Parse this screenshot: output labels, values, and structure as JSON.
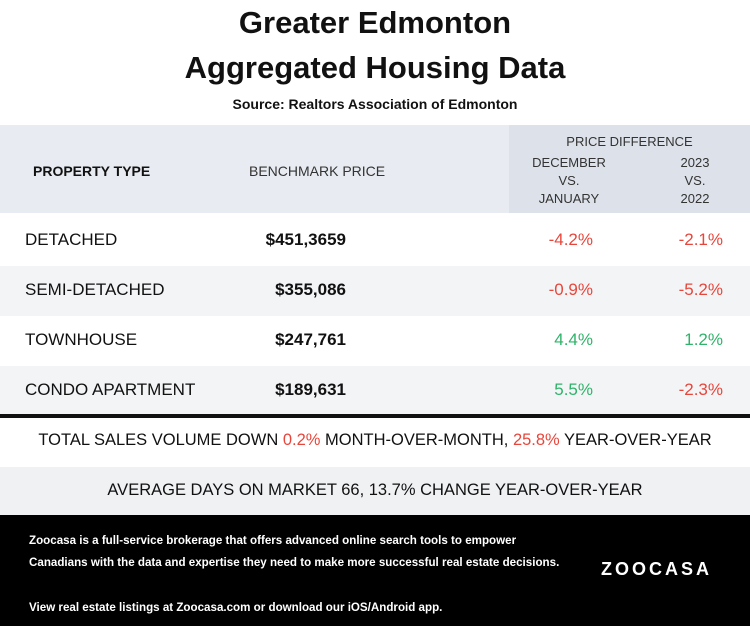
{
  "title_line1": "Greater Edmonton",
  "title_line2": "Aggregated Housing Data",
  "source": "Source: Realtors Association of Edmonton",
  "header": {
    "property_type": "PROPERTY TYPE",
    "benchmark_price": "BENCHMARK PRICE",
    "price_difference": "PRICE DIFFERENCE",
    "col_a_line1": "DECEMBER",
    "col_a_line2": "VS.",
    "col_a_line3": "JANUARY",
    "col_b_line1": "2023",
    "col_b_line2": "VS.",
    "col_b_line3": "2022"
  },
  "rows": [
    {
      "type": "DETACHED",
      "price": "$451,3659",
      "mom": "-4.2%",
      "yoy": "-2.1%"
    },
    {
      "type": "SEMI-DETACHED",
      "price": "$355,086",
      "mom": "-0.9%",
      "yoy": "-5.2%"
    },
    {
      "type": "TOWNHOUSE",
      "price": "$247,761",
      "mom": "4.4%",
      "yoy": "1.2%"
    },
    {
      "type": "CONDO APARTMENT",
      "price": "$189,631",
      "mom": "5.5%",
      "yoy": "-2.3%"
    }
  ],
  "sales": {
    "prefix": "TOTAL SALES VOLUME DOWN ",
    "mom_value": "0.2%",
    "middle": " MONTH-OVER-MONTH, ",
    "yoy_value": "25.8%",
    "suffix": " YEAR-OVER-YEAR"
  },
  "days_on_market": "AVERAGE DAYS ON MARKET 66,  13.7% CHANGE YEAR-OVER-YEAR",
  "footer": {
    "description": "Zoocasa is a full-service brokerage that offers advanced online search tools to empower Canadians with the data and expertise they need to make more successful real estate decisions.",
    "link_text": "View real estate listings at Zoocasa.com or download our iOS/Android app.",
    "logo": "ZOOCASA"
  },
  "colors": {
    "negative": "#e8463b",
    "positive": "#2fb36a",
    "header_bg": "#e8ecf2",
    "footer_bg": "#000000"
  }
}
